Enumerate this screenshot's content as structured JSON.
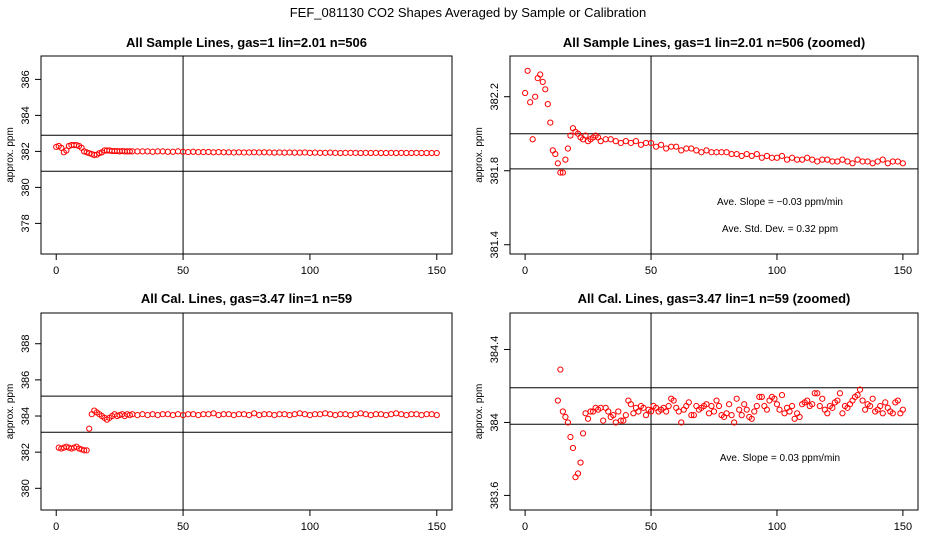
{
  "page_title": "FEF_081130  CO2 Shapes Averaged by Sample or Calibration",
  "colors": {
    "points": "#ff0000",
    "axes": "#000000"
  },
  "chart_data": [
    {
      "type": "scatter",
      "title": "All Sample Lines, gas=1 lin=2.01 n=506",
      "xlabel": "",
      "ylabel": "approx. ppm",
      "xlim": [
        -6,
        156
      ],
      "ylim": [
        376.3,
        387.3
      ],
      "xticks": [
        0,
        50,
        100,
        150
      ],
      "yticks": [
        378,
        380,
        382,
        384,
        386
      ],
      "hlines": [
        382.9,
        380.9
      ],
      "vlines": [
        50
      ],
      "grid": false,
      "marker": "open-circle",
      "annotations": [],
      "series": [
        {
          "x": [
            0,
            1,
            2,
            3,
            4,
            5,
            6,
            7,
            8,
            9,
            10,
            11,
            12,
            13,
            14,
            15,
            16,
            17,
            18,
            19,
            20,
            21,
            22,
            23,
            24,
            25,
            26,
            27,
            28,
            29,
            30,
            32,
            34,
            36,
            38,
            40,
            42,
            44,
            46,
            48,
            50,
            52,
            54,
            56,
            58,
            60,
            62,
            64,
            66,
            68,
            70,
            72,
            74,
            76,
            78,
            80,
            82,
            84,
            86,
            88,
            90,
            92,
            94,
            96,
            98,
            100,
            102,
            104,
            106,
            108,
            110,
            112,
            114,
            116,
            118,
            120,
            122,
            124,
            126,
            128,
            130,
            132,
            134,
            136,
            138,
            140,
            142,
            144,
            146,
            148,
            150
          ],
          "y": [
            382.25,
            382.3,
            382.2,
            381.95,
            382.05,
            382.3,
            382.35,
            382.35,
            382.35,
            382.3,
            382.2,
            382.0,
            381.95,
            381.9,
            381.85,
            381.8,
            381.82,
            381.9,
            381.95,
            382.05,
            382.05,
            382.05,
            382.02,
            382.02,
            382.02,
            382.0,
            382.02,
            382.0,
            382.0,
            382.0,
            382.0,
            382.0,
            382.0,
            382.0,
            381.98,
            382.0,
            382.0,
            381.98,
            381.98,
            382.0,
            381.98,
            381.96,
            381.98,
            381.96,
            381.96,
            381.97,
            381.95,
            381.96,
            381.95,
            381.95,
            381.94,
            381.95,
            381.94,
            381.94,
            381.95,
            381.94,
            381.95,
            381.94,
            381.93,
            381.94,
            381.93,
            381.94,
            381.93,
            381.93,
            381.94,
            381.92,
            381.93,
            381.92,
            381.92,
            381.93,
            381.92,
            381.91,
            381.92,
            381.92,
            381.92,
            381.91,
            381.92,
            381.91,
            381.92,
            381.91,
            381.91,
            381.92,
            381.91,
            381.92,
            381.91,
            381.91,
            381.92,
            381.91,
            381.91,
            381.91,
            381.91
          ]
        }
      ]
    },
    {
      "type": "scatter",
      "title": "All Sample Lines, gas=1 lin=2.01 n=506 (zoomed)",
      "xlabel": "",
      "ylabel": "approx. ppm",
      "xlim": [
        -6,
        156
      ],
      "ylim": [
        381.35,
        382.42
      ],
      "xticks": [
        0,
        50,
        100,
        150
      ],
      "yticks": [
        381.4,
        381.8,
        382.2
      ],
      "hlines": [
        382.0,
        381.81
      ],
      "vlines": [
        50
      ],
      "grid": false,
      "marker": "open-circle",
      "annotations": [
        "Ave. Slope =  −0.03  ppm/min",
        "Ave. Std. Dev. =  0.32  ppm"
      ],
      "series": [
        {
          "x": [
            0,
            1,
            2,
            3,
            4,
            5,
            6,
            7,
            8,
            9,
            10,
            11,
            12,
            13,
            14,
            15,
            16,
            17,
            18,
            19,
            20,
            21,
            22,
            23,
            24,
            25,
            26,
            27,
            28,
            29,
            30,
            32,
            34,
            36,
            38,
            40,
            42,
            44,
            46,
            48,
            50,
            52,
            54,
            56,
            58,
            60,
            62,
            64,
            66,
            68,
            70,
            72,
            74,
            76,
            78,
            80,
            82,
            84,
            86,
            88,
            90,
            92,
            94,
            96,
            98,
            100,
            102,
            104,
            106,
            108,
            110,
            112,
            114,
            116,
            118,
            120,
            122,
            124,
            126,
            128,
            130,
            132,
            134,
            136,
            138,
            140,
            142,
            144,
            146,
            148,
            150
          ],
          "y": [
            382.22,
            382.34,
            382.17,
            381.97,
            382.2,
            382.3,
            382.32,
            382.28,
            382.24,
            382.16,
            382.06,
            381.91,
            381.89,
            381.84,
            381.79,
            381.79,
            381.86,
            381.92,
            381.99,
            382.03,
            382.01,
            382.0,
            381.98,
            381.97,
            381.99,
            381.96,
            381.97,
            381.98,
            381.99,
            381.98,
            381.96,
            381.97,
            381.97,
            381.96,
            381.95,
            381.96,
            381.95,
            381.96,
            381.94,
            381.95,
            381.95,
            381.93,
            381.94,
            381.92,
            381.93,
            381.93,
            381.91,
            381.92,
            381.92,
            381.91,
            381.9,
            381.91,
            381.9,
            381.9,
            381.9,
            381.9,
            381.89,
            381.89,
            381.88,
            381.89,
            381.88,
            381.89,
            381.87,
            381.88,
            381.87,
            381.87,
            381.88,
            381.86,
            381.87,
            381.86,
            381.86,
            381.87,
            381.86,
            381.85,
            381.86,
            381.86,
            381.85,
            381.85,
            381.86,
            381.85,
            381.84,
            381.86,
            381.85,
            381.85,
            381.84,
            381.85,
            381.86,
            381.84,
            381.85,
            381.85,
            381.84
          ]
        }
      ]
    },
    {
      "type": "scatter",
      "title": "All Cal. Lines, gas=3.47 lin=1 n=59",
      "xlabel": "",
      "ylabel": "approx. ppm",
      "xlim": [
        -6,
        156
      ],
      "ylim": [
        378.8,
        389.7
      ],
      "xticks": [
        0,
        50,
        100,
        150
      ],
      "yticks": [
        380,
        382,
        384,
        386,
        388
      ],
      "hlines": [
        385.1,
        383.1
      ],
      "vlines": [
        50
      ],
      "grid": false,
      "marker": "open-circle",
      "annotations": [],
      "series": [
        {
          "x": [
            1,
            2,
            3,
            4,
            5,
            6,
            7,
            8,
            9,
            10,
            11,
            12,
            13,
            14,
            15,
            16,
            17,
            18,
            19,
            20,
            21,
            22,
            23,
            24,
            25,
            26,
            27,
            28,
            29,
            30,
            32,
            34,
            36,
            38,
            40,
            42,
            44,
            46,
            48,
            50,
            52,
            54,
            56,
            58,
            60,
            62,
            64,
            66,
            68,
            70,
            72,
            74,
            76,
            78,
            80,
            82,
            84,
            86,
            88,
            90,
            92,
            94,
            96,
            98,
            100,
            102,
            104,
            106,
            108,
            110,
            112,
            114,
            116,
            118,
            120,
            122,
            124,
            126,
            128,
            130,
            132,
            134,
            136,
            138,
            140,
            142,
            144,
            146,
            148,
            150
          ],
          "y": [
            382.25,
            382.2,
            382.25,
            382.3,
            382.25,
            382.2,
            382.25,
            382.3,
            382.2,
            382.15,
            382.1,
            382.1,
            383.3,
            384.1,
            384.3,
            384.2,
            384.1,
            384.0,
            383.9,
            383.8,
            383.9,
            384.0,
            384.1,
            384.0,
            384.05,
            384.1,
            384.0,
            384.1,
            384.05,
            384.1,
            384.05,
            384.1,
            384.05,
            384.1,
            384.05,
            384.1,
            384.1,
            384.05,
            384.1,
            384.05,
            384.1,
            384.1,
            384.05,
            384.1,
            384.1,
            384.15,
            384.05,
            384.1,
            384.1,
            384.05,
            384.1,
            384.1,
            384.05,
            384.15,
            384.05,
            384.1,
            384.1,
            384.05,
            384.1,
            384.1,
            384.05,
            384.1,
            384.15,
            384.1,
            384.05,
            384.1,
            384.1,
            384.15,
            384.1,
            384.05,
            384.1,
            384.1,
            384.05,
            384.1,
            384.15,
            384.1,
            384.05,
            384.1,
            384.1,
            384.05,
            384.1,
            384.15,
            384.1,
            384.05,
            384.1,
            384.1,
            384.05,
            384.1,
            384.1,
            384.05
          ]
        }
      ]
    },
    {
      "type": "scatter",
      "title": "All Cal. Lines, gas=3.47 lin=1 n=59 (zoomed)",
      "xlabel": "",
      "ylabel": "approx. ppm",
      "xlim": [
        -6,
        156
      ],
      "ylim": [
        383.52,
        384.6
      ],
      "xticks": [
        0,
        50,
        100,
        150
      ],
      "yticks": [
        383.6,
        384.0,
        384.4
      ],
      "hlines": [
        384.19,
        383.99
      ],
      "vlines": [
        50
      ],
      "grid": false,
      "marker": "open-circle",
      "annotations": [
        "Ave. Slope =  0.03  ppm/min"
      ],
      "series": [
        {
          "x": [
            13,
            14,
            15,
            16,
            17,
            18,
            19,
            20,
            21,
            22,
            23,
            24,
            25,
            26,
            27,
            28,
            29,
            30,
            31,
            32,
            33,
            34,
            35,
            36,
            37,
            38,
            39,
            40,
            41,
            42,
            43,
            44,
            45,
            46,
            47,
            48,
            49,
            50,
            51,
            52,
            53,
            54,
            55,
            56,
            57,
            58,
            59,
            60,
            61,
            62,
            63,
            64,
            65,
            66,
            67,
            68,
            69,
            70,
            71,
            72,
            73,
            74,
            75,
            76,
            77,
            78,
            79,
            80,
            81,
            82,
            83,
            84,
            85,
            86,
            87,
            88,
            89,
            90,
            91,
            92,
            93,
            94,
            95,
            96,
            97,
            98,
            99,
            100,
            101,
            102,
            103,
            104,
            105,
            106,
            107,
            108,
            109,
            110,
            111,
            112,
            113,
            114,
            115,
            116,
            117,
            118,
            119,
            120,
            121,
            122,
            123,
            124,
            125,
            126,
            127,
            128,
            129,
            130,
            131,
            132,
            133,
            134,
            135,
            136,
            137,
            138,
            139,
            140,
            141,
            142,
            143,
            144,
            145,
            146,
            147,
            148,
            149,
            150
          ],
          "y": [
            384.12,
            384.29,
            384.06,
            384.03,
            384.0,
            383.92,
            383.86,
            383.7,
            383.72,
            383.78,
            383.94,
            384.05,
            384.02,
            384.06,
            384.06,
            384.08,
            384.07,
            384.08,
            384.01,
            384.08,
            384.06,
            384.03,
            384.04,
            384.0,
            384.06,
            384.01,
            384.01,
            384.04,
            384.12,
            384.1,
            384.05,
            384.08,
            384.06,
            384.09,
            384.08,
            384.04,
            384.07,
            384.06,
            384.09,
            384.08,
            384.06,
            384.07,
            384.08,
            384.06,
            384.09,
            384.13,
            384.12,
            384.08,
            384.06,
            384.0,
            384.07,
            384.09,
            384.11,
            384.04,
            384.04,
            384.09,
            384.07,
            384.08,
            384.09,
            384.1,
            384.05,
            384.09,
            384.06,
            384.12,
            384.09,
            384.04,
            384.03,
            384.05,
            384.1,
            384.04,
            384.0,
            384.13,
            384.07,
            384.04,
            384.1,
            384.07,
            384.03,
            384.02,
            384.06,
            384.09,
            384.14,
            384.14,
            384.09,
            384.07,
            384.12,
            384.14,
            384.13,
            384.1,
            384.07,
            384.15,
            384.05,
            384.08,
            384.06,
            384.09,
            384.02,
            384.05,
            384.03,
            384.1,
            384.11,
            384.12,
            384.09,
            384.1,
            384.16,
            384.16,
            384.09,
            384.13,
            384.07,
            384.05,
            384.09,
            384.08,
            384.11,
            384.12,
            384.16,
            384.05,
            384.09,
            384.08,
            384.1,
            384.12,
            384.14,
            384.15,
            384.18,
            384.12,
            384.07,
            384.1,
            384.09,
            384.13,
            384.06,
            384.07,
            384.09,
            384.05,
            384.11,
            384.08,
            384.06,
            384.05,
            384.11,
            384.12,
            384.05,
            384.07
          ]
        }
      ]
    }
  ]
}
